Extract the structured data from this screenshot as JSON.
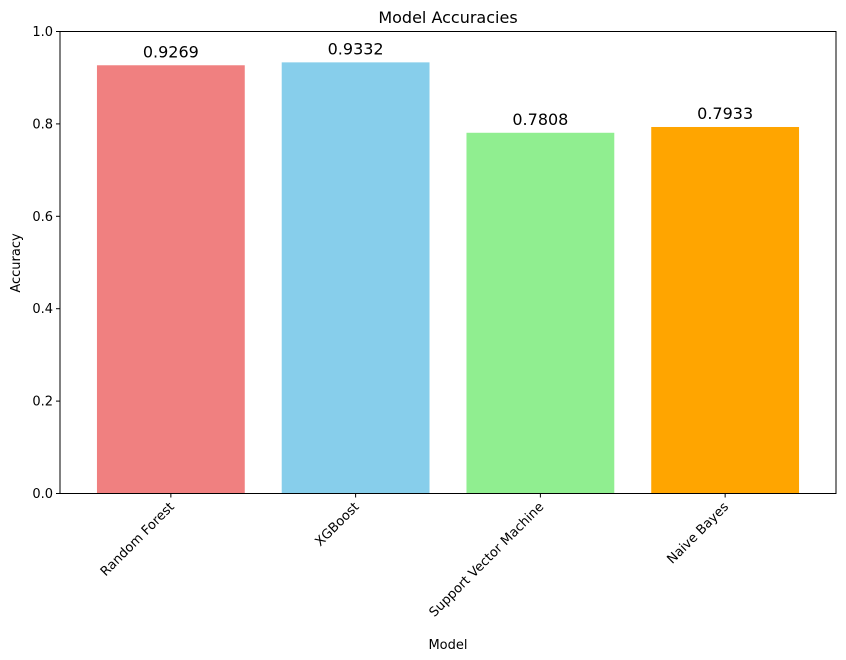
{
  "chart_data": {
    "type": "bar",
    "title": "Model Accuracies",
    "xlabel": "Model",
    "ylabel": "Accuracy",
    "categories": [
      "Random Forest",
      "XGBoost",
      "Support Vector Machine",
      "Naive Bayes"
    ],
    "values": [
      0.9269,
      0.9332,
      0.7808,
      0.7933
    ],
    "value_labels": [
      "0.9269",
      "0.9332",
      "0.7808",
      "0.7933"
    ],
    "colors": [
      "#f08080",
      "#87ceeb",
      "#90ee90",
      "#ffa500"
    ],
    "ylim": [
      0,
      1.0
    ],
    "yticks": [
      0.0,
      0.2,
      0.4,
      0.6,
      0.8,
      1.0
    ],
    "ytick_labels": [
      "0.0",
      "0.2",
      "0.4",
      "0.6",
      "0.8",
      "1.0"
    ],
    "grid": false,
    "legend": "none"
  }
}
